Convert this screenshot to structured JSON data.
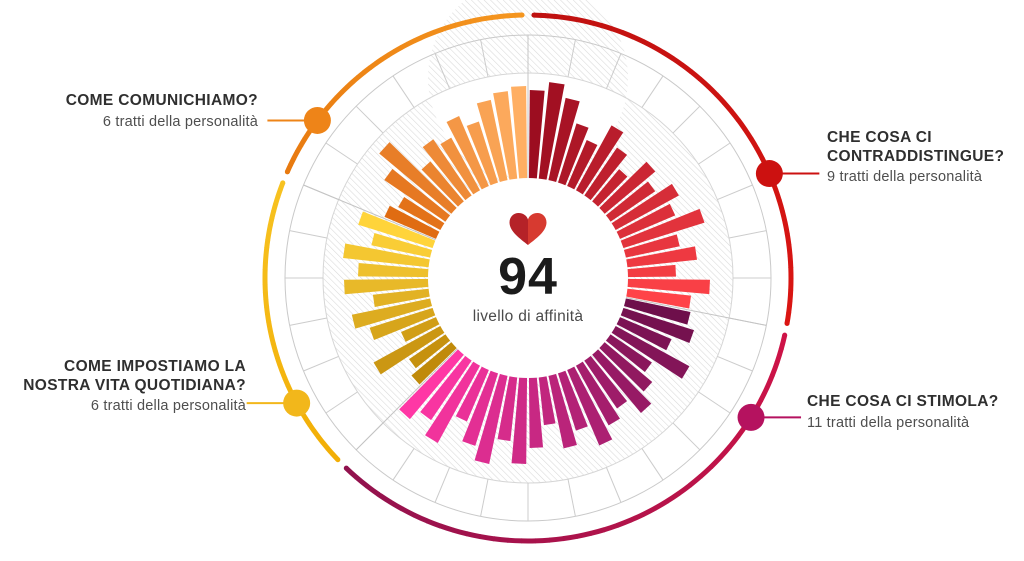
{
  "page": {
    "background": "#ffffff"
  },
  "center": {
    "score": "94",
    "caption": "livello di affinità",
    "heart_icon": {
      "left_color": "#b52228",
      "right_color": "#d73a30"
    }
  },
  "chart_data": {
    "type": "radial-bar",
    "value_range": [
      0,
      100
    ],
    "bars_per_trait": 2,
    "slot_degrees": 5.625,
    "grid": {
      "hatch_color": "#dadada",
      "hatch_edge_color": "#d6d6d6",
      "outer_ring_color": "#c9c9c9",
      "spoke_color": "#cccccc",
      "section_line_color": "#c4c4c4"
    },
    "sections": [
      {
        "id": "contraddistingue",
        "label_lines": [
          "CHE COSA CI",
          "CONTRADDISTINGUE?"
        ],
        "traits_label": "9 tratti della personalità",
        "trait_count": 9,
        "start_angle": 0,
        "end_angle": 101.25,
        "dot_angle": 66.6,
        "label_side": "right",
        "bar_color_start": "#9c0d20",
        "bar_color_end": "#ff4348",
        "arc_color_start": "#bf1110",
        "arc_color_end": "#db1512",
        "dot_color": "#cc1110",
        "bars": [
          88,
          97,
          84,
          62,
          50,
          74,
          58,
          42,
          66,
          54,
          72,
          60,
          85,
          55,
          70,
          48,
          82,
          64
        ]
      },
      {
        "id": "stimola",
        "label_lines": [
          "CHE COSA CI STIMOLA?"
        ],
        "traits_label": "11 tratti della personalità",
        "trait_count": 11,
        "start_angle": 101.25,
        "end_angle": 225,
        "dot_angle": 122,
        "label_side": "right",
        "bar_color_start": "#6e0f4b",
        "bar_color_end": "#ff37a5",
        "arc_color_start": "#ce1347",
        "arc_color_end": "#90124e",
        "dot_color": "#b5125f",
        "bars": [
          66,
          74,
          56,
          84,
          50,
          62,
          76,
          58,
          68,
          82,
          60,
          74,
          48,
          70,
          86,
          64,
          90,
          76,
          56,
          88,
          72,
          84
        ]
      },
      {
        "id": "quotidiana",
        "label_lines": [
          "COME IMPOSTIAMO LA",
          "NOSTRA VITA QUOTIDIANA?"
        ],
        "traits_label": "6 tratti della personalità",
        "trait_count": 6,
        "start_angle": 225,
        "end_angle": 292.5,
        "dot_angle": 241.6,
        "label_side": "left",
        "bar_color_start": "#c08a0a",
        "bar_color_end": "#ffd43a",
        "arc_color_start": "#f2ae06",
        "arc_color_end": "#f7c221",
        "dot_color": "#f2b71b",
        "bars": [
          52,
          44,
          76,
          38,
          66,
          80,
          56,
          84,
          70,
          86,
          60,
          78
        ]
      },
      {
        "id": "comunichiamo",
        "label_lines": [
          "COME COMUNICHIAMO?"
        ],
        "traits_label": "6 tratti della personalità",
        "trait_count": 6,
        "start_angle": 292.5,
        "end_angle": 360,
        "dot_angle": 306.8,
        "label_side": "left",
        "bar_color_start": "#e06c12",
        "bar_color_end": "#ffaf63",
        "arc_color_start": "#e87a10",
        "arc_color_end": "#f5961f",
        "dot_color": "#ee8418",
        "bars": [
          56,
          48,
          74,
          94,
          52,
          68,
          60,
          76,
          64,
          82,
          88,
          92
        ]
      }
    ]
  }
}
